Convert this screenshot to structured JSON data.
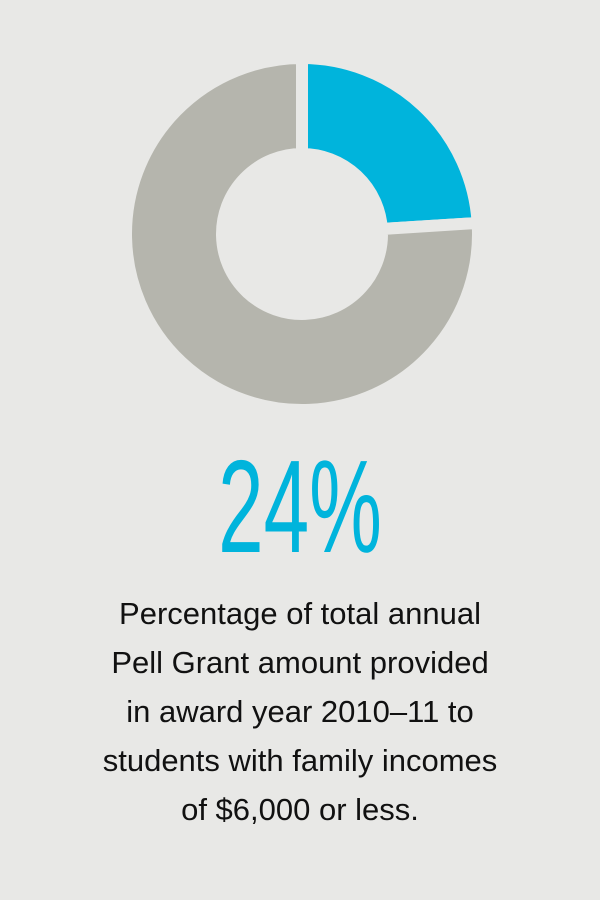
{
  "chart_data": {
    "type": "pie",
    "values": [
      24,
      76
    ],
    "value_labels": [
      "24%",
      null
    ],
    "colors": [
      "#00b4dc",
      "#b5b5ad"
    ],
    "donut": true,
    "description": [
      "Percentage of total annual",
      "Pell Grant amount provided",
      "in award year 2010–11 to",
      "students with family incomes",
      "of $6,000 or less."
    ]
  }
}
